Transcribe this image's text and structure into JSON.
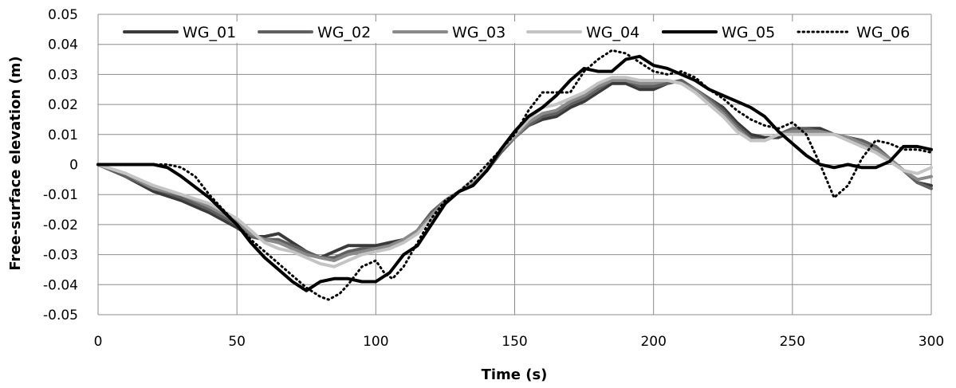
{
  "chart_data": {
    "type": "line",
    "title": "",
    "xlabel": "Time (s)",
    "ylabel": "Free-surface elevation (m)",
    "xlim": [
      0,
      300
    ],
    "ylim": [
      -0.05,
      0.05
    ],
    "xticks": [
      0,
      50,
      100,
      150,
      200,
      250,
      300
    ],
    "xtick_labels": [
      "0",
      "50",
      "100",
      "150",
      "200",
      "250",
      "300"
    ],
    "yticks": [
      -0.05,
      -0.04,
      -0.03,
      -0.02,
      -0.01,
      0,
      0.01,
      0.02,
      0.03,
      0.04,
      0.05
    ],
    "ytick_labels": [
      "-0.05",
      "-0.04",
      "-0.03",
      "-0.02",
      "-0.01",
      "0",
      "0.01",
      "0.02",
      "0.03",
      "0.04",
      "0.05"
    ],
    "grid": true,
    "legend_position": "top",
    "series": [
      {
        "name": "WG_01",
        "color": "#3a3a3a",
        "dash": "solid",
        "x": [
          0,
          10,
          20,
          30,
          40,
          50,
          55,
          60,
          65,
          70,
          75,
          80,
          85,
          90,
          95,
          100,
          105,
          110,
          115,
          120,
          125,
          130,
          135,
          140,
          145,
          150,
          155,
          160,
          165,
          170,
          175,
          180,
          185,
          190,
          195,
          200,
          205,
          210,
          215,
          220,
          225,
          230,
          235,
          240,
          245,
          250,
          255,
          260,
          265,
          270,
          275,
          280,
          285,
          290,
          295,
          300
        ],
        "y": [
          0,
          -0.004,
          -0.009,
          -0.012,
          -0.016,
          -0.021,
          -0.024,
          -0.024,
          -0.023,
          -0.026,
          -0.029,
          -0.031,
          -0.029,
          -0.027,
          -0.027,
          -0.027,
          -0.026,
          -0.025,
          -0.022,
          -0.016,
          -0.012,
          -0.009,
          -0.006,
          -0.002,
          0.004,
          0.009,
          0.013,
          0.015,
          0.016,
          0.019,
          0.021,
          0.024,
          0.027,
          0.027,
          0.025,
          0.025,
          0.027,
          0.028,
          0.025,
          0.022,
          0.019,
          0.014,
          0.01,
          0.009,
          0.009,
          0.011,
          0.012,
          0.012,
          0.01,
          0.009,
          0.008,
          0.006,
          0.002,
          -0.002,
          -0.006,
          -0.007
        ]
      },
      {
        "name": "WG_02",
        "color": "#606060",
        "dash": "solid",
        "x": [
          0,
          10,
          20,
          30,
          40,
          50,
          55,
          60,
          65,
          70,
          75,
          80,
          85,
          90,
          95,
          100,
          105,
          110,
          115,
          120,
          125,
          130,
          135,
          140,
          145,
          150,
          155,
          160,
          165,
          170,
          175,
          180,
          185,
          190,
          195,
          200,
          205,
          210,
          215,
          220,
          225,
          230,
          235,
          240,
          245,
          250,
          255,
          260,
          265,
          270,
          275,
          280,
          285,
          290,
          295,
          300
        ],
        "y": [
          0,
          -0.004,
          -0.008,
          -0.011,
          -0.015,
          -0.02,
          -0.024,
          -0.025,
          -0.025,
          -0.027,
          -0.029,
          -0.031,
          -0.031,
          -0.029,
          -0.028,
          -0.028,
          -0.027,
          -0.025,
          -0.022,
          -0.016,
          -0.012,
          -0.009,
          -0.006,
          -0.002,
          0.004,
          0.009,
          0.013,
          0.016,
          0.017,
          0.02,
          0.022,
          0.025,
          0.028,
          0.028,
          0.026,
          0.026,
          0.027,
          0.028,
          0.025,
          0.022,
          0.018,
          0.013,
          0.009,
          0.008,
          0.01,
          0.012,
          0.012,
          0.011,
          0.01,
          0.009,
          0.008,
          0.006,
          0.002,
          -0.002,
          -0.006,
          -0.008
        ]
      },
      {
        "name": "WG_03",
        "color": "#8a8a8a",
        "dash": "solid",
        "x": [
          0,
          10,
          20,
          30,
          40,
          50,
          55,
          60,
          65,
          70,
          75,
          80,
          85,
          90,
          95,
          100,
          105,
          110,
          115,
          120,
          125,
          130,
          135,
          140,
          145,
          150,
          155,
          160,
          165,
          170,
          175,
          180,
          185,
          190,
          195,
          200,
          205,
          210,
          215,
          220,
          225,
          230,
          235,
          240,
          245,
          250,
          255,
          260,
          265,
          270,
          275,
          280,
          285,
          290,
          295,
          300
        ],
        "y": [
          0,
          -0.003,
          -0.008,
          -0.01,
          -0.014,
          -0.019,
          -0.023,
          -0.025,
          -0.026,
          -0.028,
          -0.03,
          -0.031,
          -0.032,
          -0.03,
          -0.029,
          -0.028,
          -0.027,
          -0.025,
          -0.022,
          -0.017,
          -0.012,
          -0.009,
          -0.006,
          -0.001,
          0.005,
          0.009,
          0.014,
          0.017,
          0.018,
          0.021,
          0.023,
          0.026,
          0.028,
          0.028,
          0.027,
          0.027,
          0.028,
          0.027,
          0.025,
          0.021,
          0.017,
          0.012,
          0.008,
          0.008,
          0.01,
          0.011,
          0.011,
          0.011,
          0.01,
          0.009,
          0.007,
          0.005,
          0.002,
          -0.002,
          -0.005,
          -0.004
        ]
      },
      {
        "name": "WG_04",
        "color": "#c4c4c4",
        "dash": "solid",
        "x": [
          0,
          10,
          20,
          30,
          40,
          50,
          55,
          60,
          65,
          70,
          75,
          80,
          85,
          90,
          95,
          100,
          105,
          110,
          115,
          120,
          125,
          130,
          135,
          140,
          145,
          150,
          155,
          160,
          165,
          170,
          175,
          180,
          185,
          190,
          195,
          200,
          205,
          210,
          215,
          220,
          225,
          230,
          235,
          240,
          245,
          250,
          255,
          260,
          265,
          270,
          275,
          280,
          285,
          290,
          295,
          300
        ],
        "y": [
          0,
          -0.003,
          -0.007,
          -0.01,
          -0.013,
          -0.018,
          -0.022,
          -0.026,
          -0.028,
          -0.029,
          -0.031,
          -0.033,
          -0.034,
          -0.032,
          -0.03,
          -0.029,
          -0.028,
          -0.026,
          -0.023,
          -0.018,
          -0.013,
          -0.009,
          -0.005,
          -0.001,
          0.005,
          0.01,
          0.015,
          0.019,
          0.02,
          0.022,
          0.024,
          0.027,
          0.029,
          0.029,
          0.028,
          0.028,
          0.028,
          0.027,
          0.024,
          0.02,
          0.016,
          0.011,
          0.008,
          0.008,
          0.01,
          0.01,
          0.01,
          0.01,
          0.01,
          0.008,
          0.006,
          0.004,
          0.001,
          -0.002,
          -0.003,
          -0.001
        ]
      },
      {
        "name": "WG_05",
        "color": "#000000",
        "dash": "solid",
        "x": [
          0,
          10,
          20,
          25,
          30,
          40,
          50,
          55,
          60,
          65,
          70,
          75,
          80,
          85,
          90,
          95,
          100,
          105,
          110,
          115,
          120,
          125,
          130,
          135,
          140,
          145,
          150,
          155,
          160,
          165,
          170,
          175,
          180,
          185,
          190,
          195,
          200,
          205,
          210,
          215,
          220,
          225,
          230,
          235,
          240,
          245,
          250,
          255,
          260,
          265,
          270,
          275,
          280,
          285,
          290,
          295,
          300
        ],
        "y": [
          0,
          0,
          0,
          -0.001,
          -0.004,
          -0.011,
          -0.02,
          -0.026,
          -0.031,
          -0.035,
          -0.039,
          -0.042,
          -0.039,
          -0.038,
          -0.038,
          -0.039,
          -0.039,
          -0.036,
          -0.03,
          -0.027,
          -0.02,
          -0.013,
          -0.009,
          -0.007,
          -0.002,
          0.005,
          0.011,
          0.016,
          0.019,
          0.023,
          0.028,
          0.032,
          0.031,
          0.031,
          0.035,
          0.036,
          0.033,
          0.032,
          0.03,
          0.028,
          0.025,
          0.023,
          0.021,
          0.019,
          0.016,
          0.011,
          0.007,
          0.003,
          0,
          -0.001,
          0,
          -0.001,
          -0.001,
          0.001,
          0.006,
          0.006,
          0.005
        ]
      },
      {
        "name": "WG_06",
        "color": "#000000",
        "dash": "dotted",
        "x": [
          0,
          10,
          20,
          25,
          30,
          35,
          40,
          50,
          55,
          60,
          65,
          70,
          75,
          80,
          83,
          87,
          90,
          95,
          100,
          103,
          106,
          110,
          115,
          120,
          125,
          130,
          135,
          140,
          145,
          150,
          155,
          160,
          165,
          170,
          175,
          180,
          185,
          190,
          195,
          200,
          205,
          210,
          215,
          220,
          225,
          230,
          235,
          240,
          245,
          250,
          255,
          260,
          265,
          270,
          275,
          280,
          285,
          290,
          295,
          300
        ],
        "y": [
          0,
          0,
          0,
          0,
          -0.001,
          -0.004,
          -0.01,
          -0.02,
          -0.025,
          -0.029,
          -0.033,
          -0.037,
          -0.041,
          -0.044,
          -0.045,
          -0.043,
          -0.04,
          -0.034,
          -0.032,
          -0.036,
          -0.038,
          -0.034,
          -0.026,
          -0.018,
          -0.012,
          -0.009,
          -0.005,
          0,
          0.005,
          0.01,
          0.018,
          0.024,
          0.024,
          0.024,
          0.031,
          0.035,
          0.038,
          0.037,
          0.034,
          0.031,
          0.03,
          0.031,
          0.029,
          0.025,
          0.022,
          0.018,
          0.015,
          0.013,
          0.012,
          0.014,
          0.01,
          0,
          -0.011,
          -0.007,
          0.002,
          0.008,
          0.007,
          0.005,
          0.005,
          0.004
        ]
      }
    ]
  }
}
